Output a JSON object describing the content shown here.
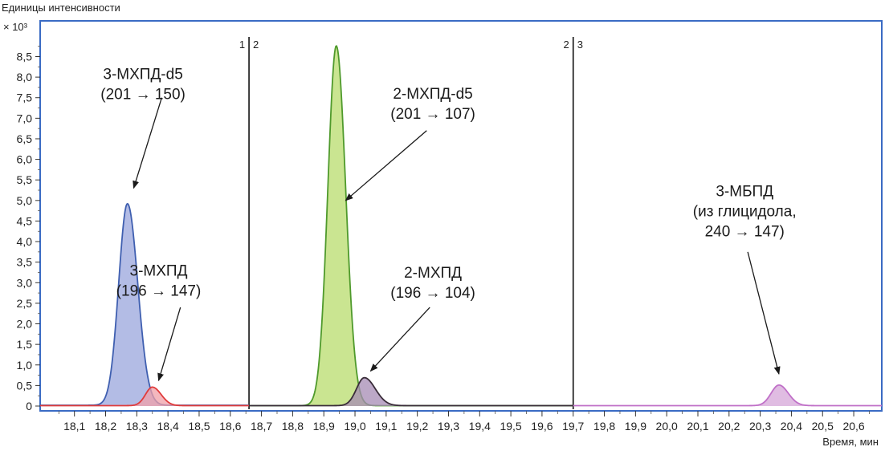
{
  "chart_data": {
    "type": "line",
    "title": "",
    "ylabel": "Единицы интенсивности",
    "yscale_label": "× 10³",
    "xlabel": "Время, мин",
    "xlim": [
      17.99,
      20.69
    ],
    "ylim": [
      0,
      8.9
    ],
    "x_ticks": [
      "18,1",
      "18,2",
      "18,3",
      "18,4",
      "18,5",
      "18,6",
      "18,7",
      "18,8",
      "18,9",
      "19,0",
      "19,1",
      "19,2",
      "19,3",
      "19,4",
      "19,5",
      "19,6",
      "19,7",
      "19,8",
      "19,9",
      "20,0",
      "20,1",
      "20,2",
      "20,3",
      "20,4",
      "20,5",
      "20,6"
    ],
    "x_tick_values": [
      18.1,
      18.2,
      18.3,
      18.4,
      18.5,
      18.6,
      18.7,
      18.8,
      18.9,
      19.0,
      19.1,
      19.2,
      19.3,
      19.4,
      19.5,
      19.6,
      19.7,
      19.8,
      19.9,
      20.0,
      20.1,
      20.2,
      20.3,
      20.4,
      20.5,
      20.6
    ],
    "y_ticks": [
      "0",
      "0,5",
      "1,0",
      "1,5",
      "2,0",
      "2,5",
      "3,0",
      "3,5",
      "4,0",
      "4,5",
      "5,0",
      "5,5",
      "6,0",
      "6,5",
      "7,0",
      "7,5",
      "8,0",
      "8,5"
    ],
    "y_tick_values": [
      0,
      0.5,
      1.0,
      1.5,
      2.0,
      2.5,
      3.0,
      3.5,
      4.0,
      4.5,
      5.0,
      5.5,
      6.0,
      6.5,
      7.0,
      7.5,
      8.0,
      8.5
    ],
    "segments": [
      {
        "left_label": "1",
        "right_label": "2",
        "x": 18.66
      },
      {
        "left_label": "2",
        "right_label": "3",
        "x": 19.7
      }
    ],
    "series": [
      {
        "color": "#3f5fb0",
        "fill": "#9aa6dc",
        "baseline": 0.02,
        "baseline_range": [
          17.99,
          18.66
        ],
        "peak": {
          "center": 18.27,
          "height": 4.9,
          "sigma_left": 0.028,
          "sigma_right": 0.033
        }
      },
      {
        "color": "#e03c3c",
        "fill": "#f0a0a8",
        "baseline": 0.01,
        "baseline_range": [
          17.99,
          18.66
        ],
        "peak": {
          "center": 18.35,
          "height": 0.45,
          "sigma_left": 0.022,
          "sigma_right": 0.028
        }
      },
      {
        "color": "#4f9a2c",
        "fill": "#b8dc6c",
        "baseline": 0.01,
        "baseline_range": [
          18.66,
          19.7
        ],
        "peak": {
          "center": 18.94,
          "height": 8.75,
          "sigma_left": 0.027,
          "sigma_right": 0.03
        }
      },
      {
        "color": "#3a2d3a",
        "fill": "#a68bb4",
        "baseline": 0.01,
        "baseline_range": [
          18.66,
          19.7
        ],
        "peak": {
          "center": 19.03,
          "height": 0.68,
          "sigma_left": 0.025,
          "sigma_right": 0.035
        }
      },
      {
        "color": "#c070c8",
        "fill": "#d6a6d8",
        "baseline": 0.01,
        "baseline_range": [
          19.7,
          20.69
        ],
        "peak": {
          "center": 20.36,
          "height": 0.5,
          "sigma_left": 0.025,
          "sigma_right": 0.03
        }
      }
    ],
    "annotations": [
      {
        "lines": [
          "3-МХПД-d5",
          "(201 → 150)"
        ],
        "text_x": 18.32,
        "text_y": 7.95,
        "arrow_from": [
          18.38,
          7.5
        ],
        "arrow_to": [
          18.29,
          5.3
        ]
      },
      {
        "lines": [
          "3-МХПД",
          "(196 → 147)"
        ],
        "text_x": 18.37,
        "text_y": 3.17,
        "arrow_from": [
          18.44,
          2.4
        ],
        "arrow_to": [
          18.37,
          0.62
        ]
      },
      {
        "lines": [
          "2-МХПД-d5",
          "(201 → 107)"
        ],
        "text_x": 19.25,
        "text_y": 7.48,
        "arrow_from": [
          19.23,
          6.7
        ],
        "arrow_to": [
          18.97,
          5.0
        ]
      },
      {
        "lines": [
          "2-МХПД",
          "(196 → 104)"
        ],
        "text_x": 19.25,
        "text_y": 3.12,
        "arrow_from": [
          19.24,
          2.4
        ],
        "arrow_to": [
          19.05,
          0.85
        ]
      },
      {
        "lines": [
          "3-МБПД",
          "(из глицидола,",
          "240 → 147)"
        ],
        "text_x": 20.25,
        "text_y": 5.1,
        "arrow_from": [
          20.26,
          3.75
        ],
        "arrow_to": [
          20.36,
          0.78
        ]
      }
    ],
    "legend": "none",
    "grid": false
  }
}
